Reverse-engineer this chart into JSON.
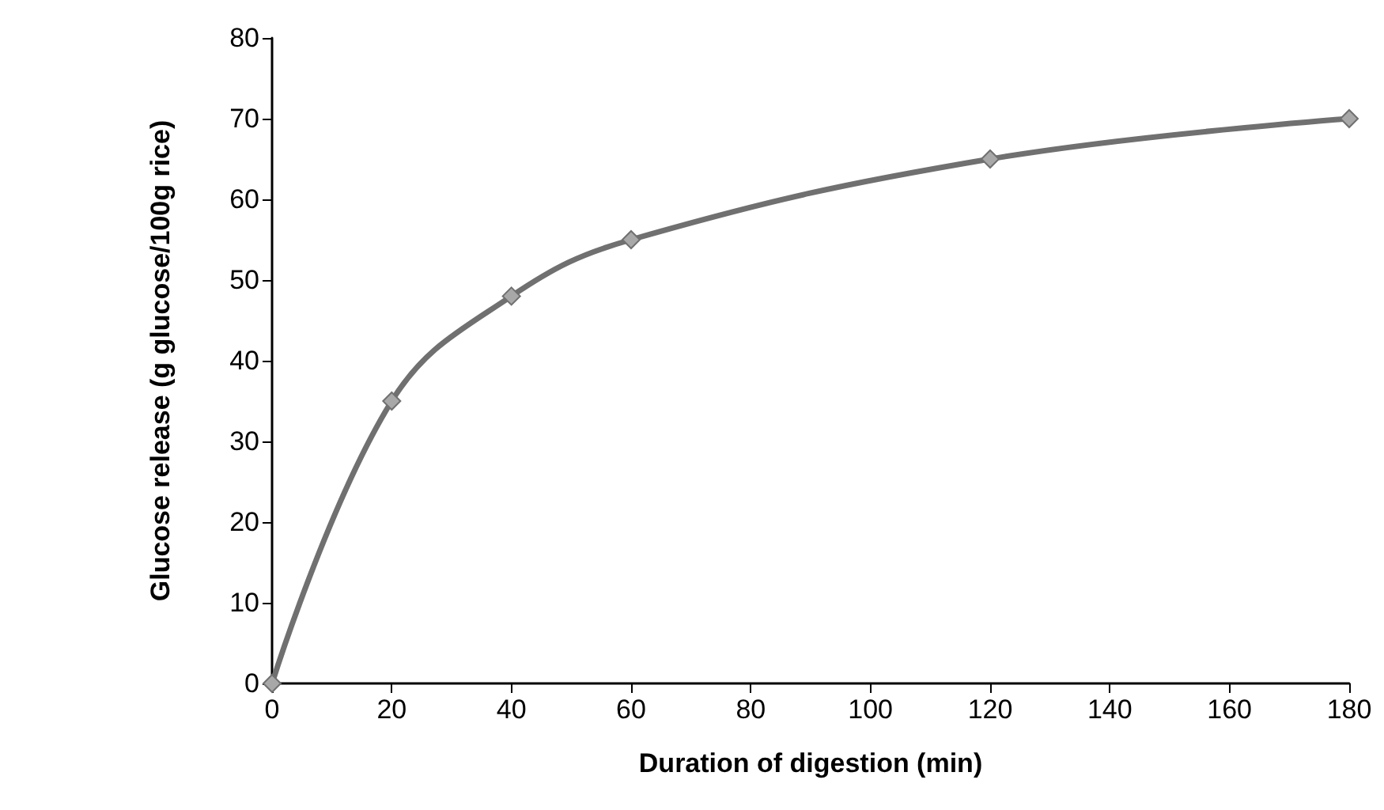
{
  "chart_data": {
    "type": "line",
    "xlabel": "Duration of digestion (min)",
    "ylabel": "Glucose release (g glucose/100g rice)",
    "x": [
      0,
      20,
      40,
      60,
      120,
      180
    ],
    "series": [
      {
        "color": "#707070",
        "values": [
          0,
          35,
          48,
          55,
          65,
          70
        ]
      }
    ],
    "xlim": [
      0,
      180
    ],
    "xticks": [
      0,
      20,
      40,
      60,
      80,
      100,
      120,
      140,
      160,
      180
    ],
    "ylim": [
      0,
      80
    ],
    "yticks": [
      0,
      10,
      20,
      30,
      40,
      50,
      60,
      70,
      80
    ],
    "grid": false,
    "marker": "diamond",
    "line_style": "solid"
  }
}
